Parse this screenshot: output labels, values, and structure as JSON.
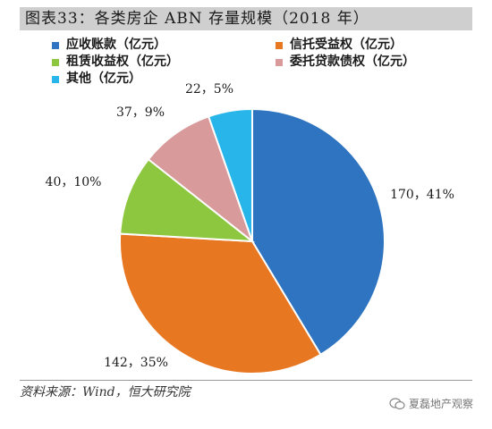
{
  "title": "图表33：各类房企 ABN 存量规模（2018 年）",
  "source": "资料来源：Wind，恒大研究院",
  "watermark": "夏磊地产观察",
  "chart_data": {
    "type": "pie",
    "unit": "亿元",
    "legend_position": "top",
    "slices": [
      {
        "name": "应收账款（亿元）",
        "value": 170,
        "percent": 41,
        "label": "170，41%",
        "color": "#2e74c0"
      },
      {
        "name": "信托受益权（亿元）",
        "value": 142,
        "percent": 35,
        "label": "142，35%",
        "color": "#e87722"
      },
      {
        "name": "租赁收益权（亿元）",
        "value": 40,
        "percent": 10,
        "label": "40，10%",
        "color": "#8dc73f"
      },
      {
        "name": "委托贷款债权（亿元）",
        "value": 37,
        "percent": 9,
        "label": "37，9%",
        "color": "#d89a9a"
      },
      {
        "name": "其他（亿元）",
        "value": 22,
        "percent": 5,
        "label": "22，5%",
        "color": "#27b5ea"
      }
    ]
  }
}
